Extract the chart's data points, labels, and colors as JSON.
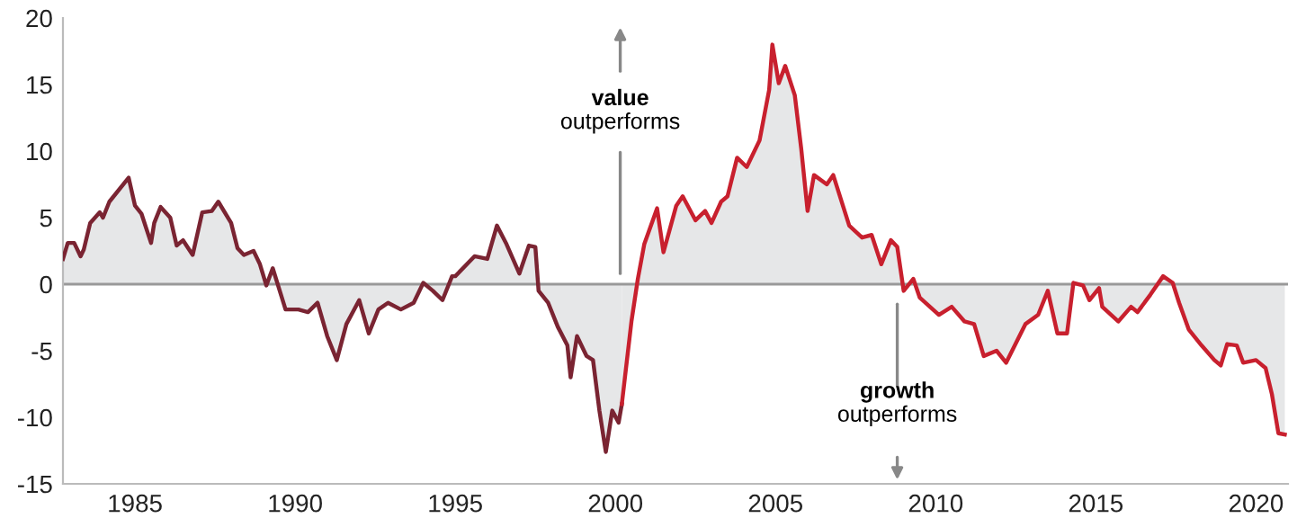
{
  "chart_data": {
    "type": "area",
    "x": [
      1982.75,
      1982.9,
      1983.1,
      1983.3,
      1983.4,
      1983.6,
      1983.9,
      1984.0,
      1984.2,
      1984.8,
      1985.0,
      1985.2,
      1985.5,
      1985.6,
      1985.8,
      1986.1,
      1986.3,
      1986.5,
      1986.8,
      1987.1,
      1987.4,
      1987.6,
      1988.0,
      1988.2,
      1988.4,
      1988.7,
      1988.9,
      1989.1,
      1989.3,
      1989.7,
      1990.1,
      1990.4,
      1990.7,
      1991.0,
      1991.3,
      1991.6,
      1992.0,
      1992.3,
      1992.6,
      1992.9,
      1993.3,
      1993.7,
      1994.0,
      1994.3,
      1994.6,
      1994.9,
      1995.0,
      1995.6,
      1996.0,
      1996.3,
      1996.6,
      1997.0,
      1997.3,
      1997.5,
      1997.6,
      1997.9,
      1998.2,
      1998.5,
      1998.6,
      1998.8,
      1999.1,
      1999.3,
      1999.5,
      1999.7,
      1999.9,
      2000.1,
      2000.2
    ],
    "series": [
      {
        "color": "#7a2432",
        "values": [
          1.9,
          3.1,
          3.1,
          2.1,
          2.6,
          4.6,
          5.4,
          5.0,
          6.2,
          8.0,
          5.9,
          5.3,
          3.1,
          4.6,
          5.8,
          5.0,
          2.9,
          3.3,
          2.2,
          5.4,
          5.5,
          6.2,
          4.6,
          2.7,
          2.2,
          2.5,
          1.5,
          -0.1,
          1.2,
          -1.9,
          -1.9,
          -2.1,
          -1.4,
          -3.9,
          -5.7,
          -3.0,
          -1.2,
          -3.7,
          -1.9,
          -1.4,
          -1.9,
          -1.4,
          0.1,
          -0.5,
          -1.2,
          0.6,
          0.6,
          2.1,
          1.9,
          4.4,
          3.0,
          0.8,
          2.9,
          2.8,
          -0.5,
          -1.4,
          -3.2,
          -4.6,
          -7.0,
          -3.9,
          -5.4,
          -5.7,
          -9.5,
          -12.6,
          -9.5,
          -10.4,
          -9.0
        ]
      },
      {
        "color": "#c8202e",
        "x": [
          2000.2,
          2000.5,
          2000.7,
          2000.9,
          2001.3,
          2001.5,
          2001.9,
          2002.1,
          2002.5,
          2002.8,
          2003.0,
          2003.3,
          2003.5,
          2003.8,
          2004.1,
          2004.5,
          2004.8,
          2004.9,
          2005.1,
          2005.3,
          2005.6,
          2005.8,
          2006.0,
          2006.2,
          2006.6,
          2006.8,
          2007.3,
          2007.7,
          2008.0,
          2008.3,
          2008.6,
          2008.8,
          2009.0,
          2009.3,
          2009.5,
          2010.1,
          2010.5,
          2010.9,
          2011.2,
          2011.5,
          2011.9,
          2012.2,
          2012.8,
          2013.2,
          2013.5,
          2013.8,
          2014.1,
          2014.3,
          2014.6,
          2014.8,
          2015.1,
          2015.2,
          2015.7,
          2016.1,
          2016.3,
          2016.7,
          2017.1,
          2017.4,
          2017.6,
          2017.9,
          2018.3,
          2018.7,
          2018.9,
          2019.1,
          2019.4,
          2019.6,
          2020.0,
          2020.3,
          2020.5,
          2020.7,
          2020.9
        ],
        "values": [
          -9.0,
          -2.8,
          0.4,
          3.0,
          5.7,
          2.4,
          5.9,
          6.6,
          4.8,
          5.5,
          4.6,
          6.2,
          6.6,
          9.5,
          8.8,
          10.8,
          14.6,
          18.0,
          15.1,
          16.4,
          14.2,
          10.2,
          5.5,
          8.2,
          7.5,
          8.2,
          4.4,
          3.5,
          3.7,
          1.5,
          3.3,
          2.8,
          -0.5,
          0.4,
          -1.0,
          -2.3,
          -1.7,
          -2.8,
          -3.0,
          -5.4,
          -5.0,
          -5.9,
          -3.0,
          -2.3,
          -0.5,
          -3.7,
          -3.7,
          0.1,
          -0.1,
          -1.2,
          -0.3,
          -1.7,
          -2.8,
          -1.7,
          -2.1,
          -0.8,
          0.6,
          0.1,
          -1.4,
          -3.4,
          -4.6,
          -5.7,
          -6.1,
          -4.5,
          -4.6,
          -5.9,
          -5.7,
          -6.3,
          -8.3,
          -11.2,
          -11.3
        ]
      }
    ],
    "xlim": [
      1982.75,
      2021
    ],
    "ylim": [
      -15,
      20
    ],
    "xticks": [
      1985,
      1990,
      1995,
      2000,
      2005,
      2010,
      2015,
      2020
    ],
    "yticks": [
      -15,
      -10,
      -5,
      0,
      5,
      10,
      15,
      20
    ],
    "ref_lines": [
      {
        "axis": "y",
        "value": 0,
        "color": "#999999"
      }
    ],
    "annotations": [
      "value outperforms",
      "growth outperforms"
    ],
    "grid": false,
    "legend": false
  }
}
